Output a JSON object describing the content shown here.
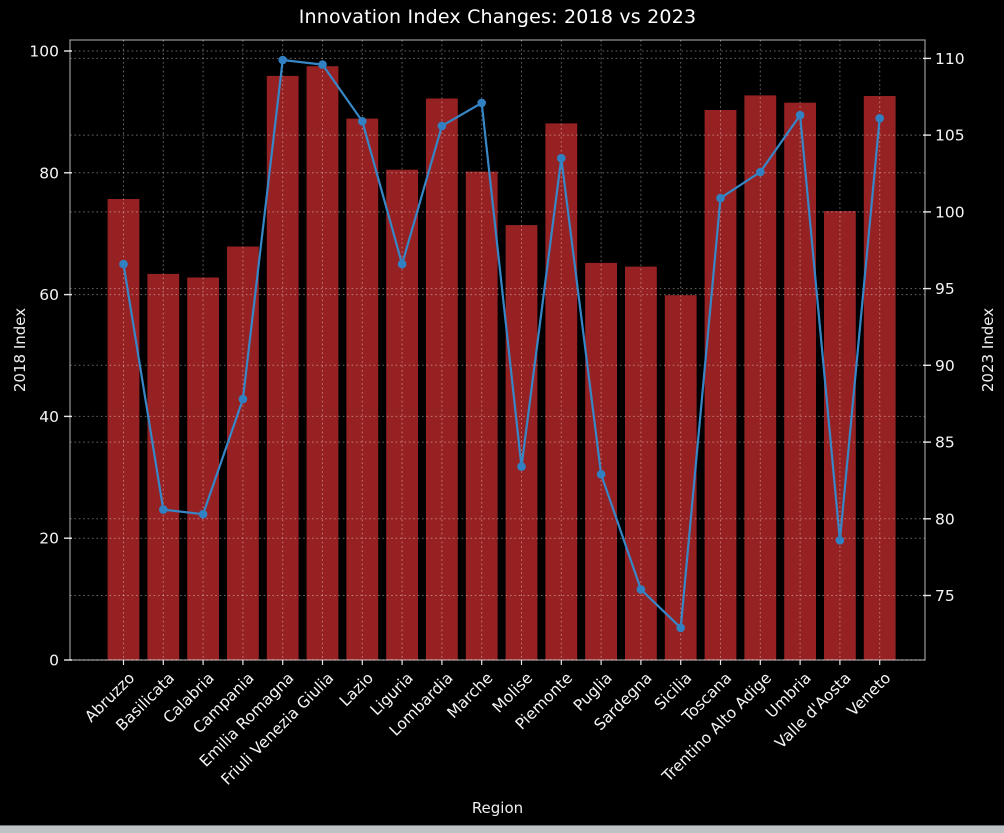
{
  "chart_data": {
    "type": "bar+line",
    "title": "Innovation Index Changes: 2018 vs 2023",
    "xlabel": "Region",
    "categories": [
      "Abruzzo",
      "Basilicata",
      "Calabria",
      "Campania",
      "Emilia Romagna",
      "Friuli Venezia Giulia",
      "Lazio",
      "Liguria",
      "Lombardia",
      "Marche",
      "Molise",
      "Piemonte",
      "Puglia",
      "Sardegna",
      "Sicilia",
      "Toscana",
      "Trentino Alto Adige",
      "Umbria",
      "Valle d'Aosta",
      "Veneto"
    ],
    "series": [
      {
        "name": "2018 Index",
        "type": "bar",
        "axis": "left",
        "values": [
          75.7,
          63.4,
          62.8,
          67.9,
          95.9,
          97.5,
          88.9,
          80.5,
          92.2,
          80.2,
          71.4,
          88.1,
          65.2,
          64.6,
          59.9,
          90.3,
          92.7,
          91.5,
          73.7,
          92.6
        ]
      },
      {
        "name": "2023 Index",
        "type": "line",
        "axis": "right",
        "values": [
          96.6,
          80.6,
          80.3,
          87.8,
          109.9,
          109.6,
          105.9,
          96.6,
          105.6,
          107.1,
          83.4,
          103.5,
          82.9,
          75.4,
          72.9,
          100.9,
          102.6,
          106.3,
          78.6,
          106.1
        ]
      }
    ],
    "axes": {
      "left": {
        "label": "2018 Index",
        "ticks": [
          0,
          20,
          40,
          60,
          80,
          100
        ],
        "range": [
          0,
          101.8
        ]
      },
      "right": {
        "label": "2023 Index",
        "ticks": [
          75,
          80,
          85,
          90,
          95,
          100,
          105,
          110
        ],
        "range": [
          70.8,
          111.2
        ]
      }
    },
    "grid": {
      "visible": true,
      "style": "dashed",
      "horizontal_lines": "both-axes-ticks",
      "vertical_lines": "every-category"
    },
    "legend": {
      "visible": false
    },
    "x_tick_rotation_deg": 45,
    "background": "#000000"
  },
  "colors": {
    "bar": "#962123",
    "line": "#3787c7",
    "marker": "#3080c2",
    "grid": "rgba(255,255,255,0.40)",
    "spine": "rgba(255,255,255,0.60)",
    "tick_mark": "rgba(255,255,255,0.90)",
    "text": "#f5f5f5",
    "window_edge": "#bfc2c5"
  }
}
